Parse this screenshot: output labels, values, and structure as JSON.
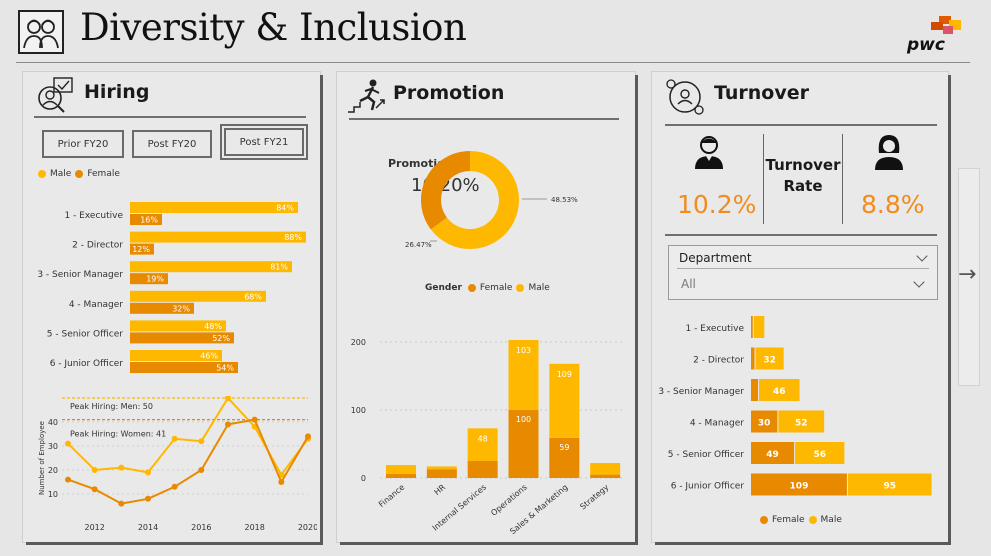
{
  "header": {
    "title": "Diversity & Inclusion",
    "brand": "pwc"
  },
  "hiring": {
    "title": "Hiring",
    "buttons": [
      "Prior FY20",
      "Post FY20",
      "Post FY21"
    ],
    "selected": "Post FY21",
    "legend": {
      "male": "Male",
      "female": "Female"
    },
    "peak_men": "Peak Hiring: Men: 50",
    "peak_women": "Peak Hiring: Women: 41",
    "y_axis_label": "Number of Employee"
  },
  "promotion": {
    "title": "Promotion",
    "rate_label": "Promotion Rate",
    "rate_value": "10.20%",
    "gender_label": "Gender",
    "legend": {
      "female": "Female",
      "male": "Male"
    }
  },
  "turnover": {
    "title": "Turnover",
    "label": "Turnover Rate",
    "male_rate": "10.2%",
    "female_rate": "8.8%",
    "slicer_label": "Department",
    "slicer_value": "All",
    "legend": {
      "female": "Female",
      "male": "Male"
    }
  },
  "colors": {
    "male": "#ffb800",
    "female": "#e88a00"
  },
  "icons": [
    "diversity-people-icon",
    "pwc-logo",
    "hiring-icon",
    "promotion-runner-icon",
    "turnover-icon",
    "male-person-icon",
    "female-person-icon",
    "chevron-down-icon",
    "arrow-right-icon"
  ],
  "chart_data": [
    {
      "type": "bar",
      "orientation": "horizontal",
      "categories": [
        "1 - Executive",
        "2 - Director",
        "3 - Senior Manager",
        "4 - Manager",
        "5 - Senior Officer",
        "6 - Junior Officer"
      ],
      "series": [
        {
          "name": "Male",
          "values": [
            84,
            88,
            81,
            68,
            48,
            46
          ],
          "labels": [
            "84%",
            "88%",
            "81%",
            "68%",
            "48%",
            "46%"
          ]
        },
        {
          "name": "Female",
          "values": [
            16,
            12,
            19,
            32,
            52,
            54
          ],
          "labels": [
            "16%",
            "12%",
            "19%",
            "32%",
            "52%",
            "54%"
          ]
        }
      ]
    },
    {
      "type": "line",
      "x": [
        2011,
        2012,
        2013,
        2014,
        2015,
        2016,
        2017,
        2018,
        2019,
        2020
      ],
      "xticks": [
        "2012",
        "2014",
        "2016",
        "2018",
        "2020"
      ],
      "yticks": [
        "10",
        "20",
        "30",
        "40"
      ],
      "ylim": [
        0,
        50
      ],
      "ylabel": "Number of Employee",
      "series": [
        {
          "name": "Male",
          "values": [
            31,
            20,
            21,
            19,
            33,
            32,
            50,
            38,
            18,
            33
          ]
        },
        {
          "name": "Female",
          "values": [
            16,
            12,
            6,
            8,
            13,
            20,
            39,
            41,
            15,
            34
          ]
        }
      ],
      "reference_lines": [
        50,
        41
      ]
    },
    {
      "type": "pie",
      "donut": true,
      "title": "Promotion Rate",
      "slices": [
        {
          "name": "Male",
          "value": 48.53,
          "label": "48.53%"
        },
        {
          "name": "Female",
          "value": 26.47,
          "label": "26.47%"
        }
      ]
    },
    {
      "type": "bar",
      "stacked": true,
      "categories": [
        "Finance",
        "HR",
        "Internal Services",
        "Operations",
        "Sales & Marketing",
        "Strategy"
      ],
      "yticks": [
        "0",
        "100",
        "200"
      ],
      "ylim": [
        0,
        200
      ],
      "series": [
        {
          "name": "Female",
          "values": [
            6,
            13,
            25,
            100,
            59,
            5
          ],
          "labels": [
            "",
            "",
            "",
            "100",
            "59",
            ""
          ]
        },
        {
          "name": "Male",
          "values": [
            13,
            4,
            48,
            103,
            109,
            17
          ],
          "labels": [
            "",
            "",
            "48",
            "103",
            "109",
            ""
          ]
        }
      ]
    },
    {
      "type": "bar",
      "orientation": "horizontal",
      "stacked": true,
      "categories": [
        "1 - Executive",
        "2 - Director",
        "3 - Senior Manager",
        "4 - Manager",
        "5 - Senior Officer",
        "6 - Junior Officer"
      ],
      "series": [
        {
          "name": "Female",
          "values": [
            2,
            4,
            8,
            30,
            49,
            109
          ],
          "labels": [
            "",
            "",
            "",
            "30",
            "49",
            "109"
          ]
        },
        {
          "name": "Male",
          "values": [
            12,
            32,
            46,
            52,
            56,
            95
          ],
          "labels": [
            "",
            "32",
            "46",
            "52",
            "56",
            "95"
          ]
        }
      ]
    }
  ]
}
